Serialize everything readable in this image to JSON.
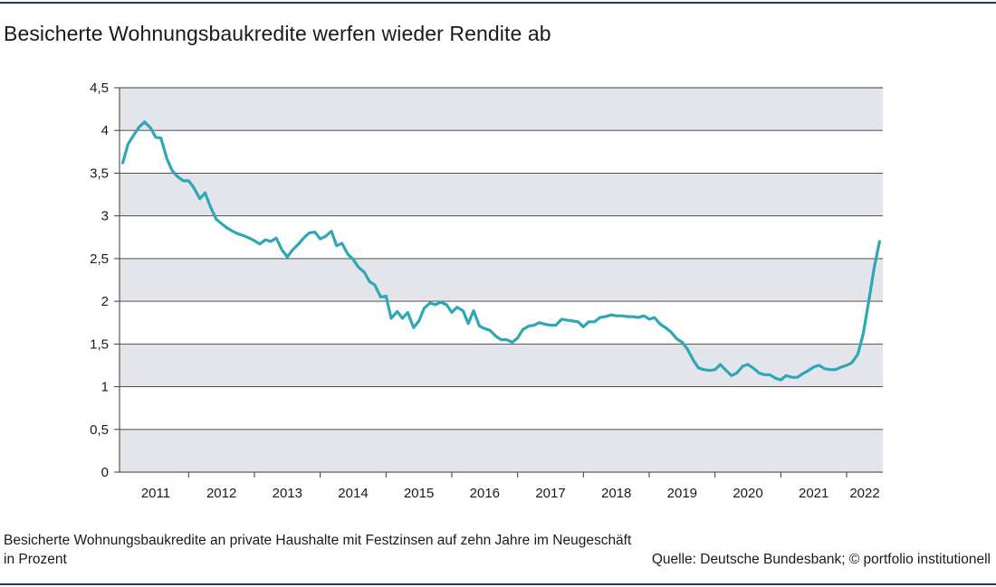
{
  "header": {
    "title": "Besicherte Wohnungsbaukredite werfen wieder Rendite ab"
  },
  "footer": {
    "caption_line1": "Besicherte Wohnungsbaukredite an private Haushalte mit Festzinsen auf zehn Jahre im Neugeschäft",
    "caption_line2": "in Prozent",
    "source": "Quelle: Deutsche Bundesbank; © portfolio institutionell"
  },
  "colors": {
    "line": "#2ea8b6",
    "band": "#e4e5eb",
    "grid": "#3a3a3a",
    "rule": "#1f3a5a"
  },
  "chart_data": {
    "type": "line",
    "title": "",
    "xlabel": "",
    "ylabel": "",
    "ylim": [
      0,
      4.5
    ],
    "xlim": [
      2010.95,
      2022.55
    ],
    "yticks": [
      0,
      0.5,
      1,
      1.5,
      2,
      2.5,
      3,
      3.5,
      4,
      4.5
    ],
    "ytick_labels": [
      "0",
      "0,5",
      "1",
      "1,5",
      "2",
      "2,5",
      "3",
      "3,5",
      "4",
      "4,5"
    ],
    "year_labels": [
      "2011",
      "2012",
      "2013",
      "2014",
      "2015",
      "2016",
      "2017",
      "2018",
      "2019",
      "2020",
      "2021",
      "2022"
    ],
    "grid": true,
    "alternating_bands": true,
    "legend": "none",
    "series": [
      {
        "values": [
          [
            2011.0,
            3.62
          ],
          [
            2011.08,
            3.84
          ],
          [
            2011.17,
            3.95
          ],
          [
            2011.25,
            4.04
          ],
          [
            2011.33,
            4.1
          ],
          [
            2011.42,
            4.03
          ],
          [
            2011.5,
            3.92
          ],
          [
            2011.58,
            3.91
          ],
          [
            2011.67,
            3.67
          ],
          [
            2011.75,
            3.53
          ],
          [
            2011.83,
            3.46
          ],
          [
            2011.92,
            3.41
          ],
          [
            2012.0,
            3.41
          ],
          [
            2012.08,
            3.33
          ],
          [
            2012.17,
            3.2
          ],
          [
            2012.25,
            3.27
          ],
          [
            2012.33,
            3.11
          ],
          [
            2012.42,
            2.96
          ],
          [
            2012.5,
            2.91
          ],
          [
            2012.58,
            2.86
          ],
          [
            2012.67,
            2.82
          ],
          [
            2012.75,
            2.79
          ],
          [
            2012.83,
            2.77
          ],
          [
            2012.92,
            2.74
          ],
          [
            2013.0,
            2.71
          ],
          [
            2013.08,
            2.67
          ],
          [
            2013.17,
            2.72
          ],
          [
            2013.25,
            2.7
          ],
          [
            2013.33,
            2.74
          ],
          [
            2013.42,
            2.6
          ],
          [
            2013.5,
            2.52
          ],
          [
            2013.58,
            2.6
          ],
          [
            2013.67,
            2.67
          ],
          [
            2013.75,
            2.74
          ],
          [
            2013.83,
            2.8
          ],
          [
            2013.92,
            2.81
          ],
          [
            2014.0,
            2.73
          ],
          [
            2014.08,
            2.76
          ],
          [
            2014.17,
            2.82
          ],
          [
            2014.25,
            2.65
          ],
          [
            2014.33,
            2.68
          ],
          [
            2014.42,
            2.55
          ],
          [
            2014.5,
            2.49
          ],
          [
            2014.58,
            2.4
          ],
          [
            2014.67,
            2.34
          ],
          [
            2014.75,
            2.23
          ],
          [
            2014.83,
            2.19
          ],
          [
            2014.92,
            2.05
          ],
          [
            2015.0,
            2.06
          ],
          [
            2015.08,
            1.8
          ],
          [
            2015.17,
            1.88
          ],
          [
            2015.25,
            1.8
          ],
          [
            2015.33,
            1.87
          ],
          [
            2015.42,
            1.69
          ],
          [
            2015.5,
            1.77
          ],
          [
            2015.58,
            1.92
          ],
          [
            2015.67,
            1.98
          ],
          [
            2015.75,
            1.96
          ],
          [
            2015.83,
            1.99
          ],
          [
            2015.92,
            1.96
          ],
          [
            2016.0,
            1.87
          ],
          [
            2016.08,
            1.93
          ],
          [
            2016.17,
            1.89
          ],
          [
            2016.25,
            1.74
          ],
          [
            2016.33,
            1.89
          ],
          [
            2016.42,
            1.71
          ],
          [
            2016.5,
            1.68
          ],
          [
            2016.58,
            1.66
          ],
          [
            2016.67,
            1.59
          ],
          [
            2016.75,
            1.55
          ],
          [
            2016.83,
            1.55
          ],
          [
            2016.92,
            1.52
          ],
          [
            2017.0,
            1.57
          ],
          [
            2017.08,
            1.67
          ],
          [
            2017.17,
            1.71
          ],
          [
            2017.25,
            1.72
          ],
          [
            2017.33,
            1.75
          ],
          [
            2017.42,
            1.73
          ],
          [
            2017.5,
            1.72
          ],
          [
            2017.58,
            1.72
          ],
          [
            2017.67,
            1.79
          ],
          [
            2017.75,
            1.78
          ],
          [
            2017.83,
            1.77
          ],
          [
            2017.92,
            1.76
          ],
          [
            2018.0,
            1.7
          ],
          [
            2018.08,
            1.76
          ],
          [
            2018.17,
            1.76
          ],
          [
            2018.25,
            1.81
          ],
          [
            2018.33,
            1.82
          ],
          [
            2018.42,
            1.84
          ],
          [
            2018.5,
            1.83
          ],
          [
            2018.58,
            1.83
          ],
          [
            2018.67,
            1.82
          ],
          [
            2018.75,
            1.82
          ],
          [
            2018.83,
            1.81
          ],
          [
            2018.92,
            1.83
          ],
          [
            2019.0,
            1.79
          ],
          [
            2019.08,
            1.81
          ],
          [
            2019.17,
            1.73
          ],
          [
            2019.25,
            1.69
          ],
          [
            2019.33,
            1.64
          ],
          [
            2019.42,
            1.56
          ],
          [
            2019.5,
            1.52
          ],
          [
            2019.58,
            1.44
          ],
          [
            2019.67,
            1.31
          ],
          [
            2019.75,
            1.22
          ],
          [
            2019.83,
            1.2
          ],
          [
            2019.92,
            1.19
          ],
          [
            2020.0,
            1.2
          ],
          [
            2020.08,
            1.26
          ],
          [
            2020.17,
            1.19
          ],
          [
            2020.25,
            1.13
          ],
          [
            2020.33,
            1.16
          ],
          [
            2020.42,
            1.24
          ],
          [
            2020.5,
            1.26
          ],
          [
            2020.58,
            1.22
          ],
          [
            2020.67,
            1.16
          ],
          [
            2020.75,
            1.14
          ],
          [
            2020.83,
            1.14
          ],
          [
            2020.92,
            1.1
          ],
          [
            2021.0,
            1.08
          ],
          [
            2021.08,
            1.13
          ],
          [
            2021.17,
            1.11
          ],
          [
            2021.25,
            1.11
          ],
          [
            2021.33,
            1.15
          ],
          [
            2021.42,
            1.19
          ],
          [
            2021.5,
            1.23
          ],
          [
            2021.58,
            1.25
          ],
          [
            2021.67,
            1.21
          ],
          [
            2021.75,
            1.2
          ],
          [
            2021.83,
            1.2
          ],
          [
            2021.92,
            1.23
          ],
          [
            2022.0,
            1.25
          ],
          [
            2022.08,
            1.28
          ],
          [
            2022.17,
            1.38
          ],
          [
            2022.25,
            1.61
          ],
          [
            2022.33,
            1.97
          ],
          [
            2022.42,
            2.4
          ],
          [
            2022.5,
            2.7
          ]
        ]
      }
    ]
  }
}
